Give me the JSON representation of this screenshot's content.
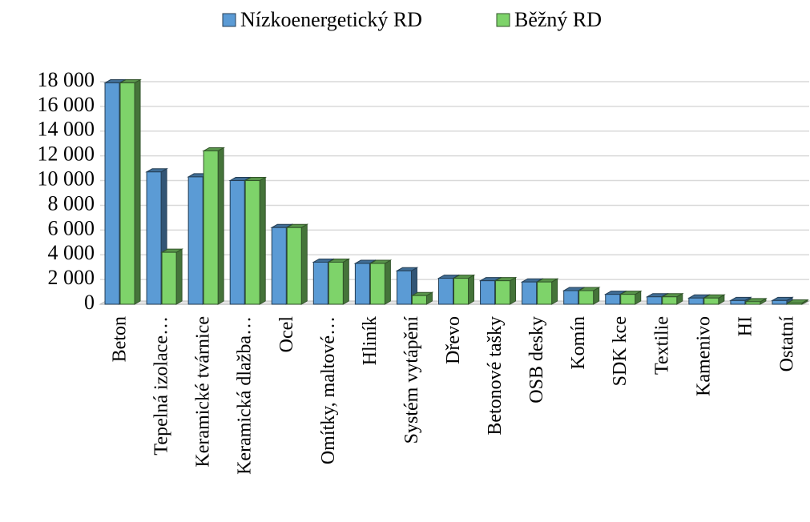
{
  "chart_data": {
    "type": "bar",
    "categories": [
      "Beton",
      "Tepelná izolace…",
      "Keramické tvárnice",
      "Keramická dlažba…",
      "Ocel",
      "Omítky, maltové…",
      "Hliník",
      "Systém vytápění",
      "Dřevo",
      "Betonové tašky",
      "OSB desky",
      "Komín",
      "SDK kce",
      "Textilie",
      "Kamenivo",
      "HI",
      "Ostatní"
    ],
    "series": [
      {
        "name": "Nízkoenergetický RD",
        "color": "#5b9bd5",
        "values": [
          17900,
          10700,
          10300,
          10000,
          6200,
          3400,
          3300,
          2700,
          2100,
          1900,
          1800,
          1100,
          800,
          600,
          500,
          300,
          300
        ]
      },
      {
        "name": "Běžný RD",
        "color": "#7ed36a",
        "values": [
          17900,
          4200,
          12400,
          10000,
          6200,
          3400,
          3300,
          700,
          2100,
          1900,
          1800,
          1100,
          800,
          600,
          500,
          200,
          100
        ]
      }
    ],
    "ylim": [
      0,
      18000
    ],
    "yticks": [
      0,
      {
        "value": 2000,
        "label": "2 000"
      },
      {
        "value": 4000,
        "label": "4 000"
      },
      {
        "value": 6000,
        "label": "6 000"
      },
      {
        "value": 8000,
        "label": "8 000"
      },
      {
        "value": 10000,
        "label": "10 000"
      },
      {
        "value": 12000,
        "label": "12 000"
      },
      {
        "value": 14000,
        "label": "14 000"
      },
      {
        "value": 16000,
        "label": "16 000"
      },
      {
        "value": 18000,
        "label": "18 000"
      }
    ],
    "grid": true,
    "legend": "top"
  }
}
